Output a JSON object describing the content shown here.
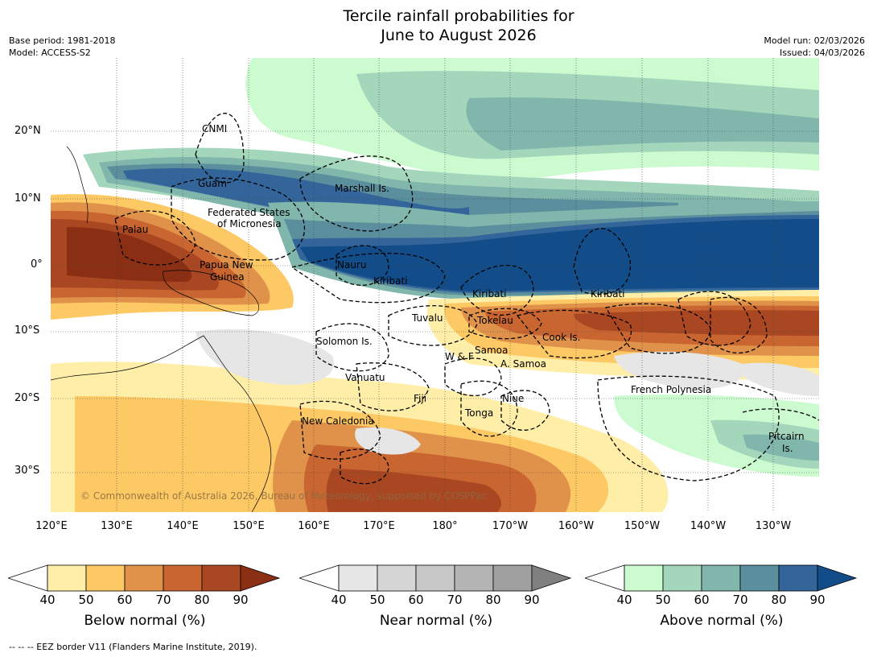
{
  "title": {
    "line1": "Tercile rainfall probabilities for",
    "line2": "June to August 2026"
  },
  "meta_left": {
    "base_period": "Base period: 1981-2018",
    "model": "Model: ACCESS-S2"
  },
  "meta_right": {
    "model_run": "Model run: 02/03/2026",
    "issued": "Issued: 04/03/2026"
  },
  "lat_labels": [
    "20°N",
    "10°N",
    "0°",
    "10°S",
    "20°S",
    "30°S"
  ],
  "lon_labels": [
    "120°E",
    "130°E",
    "140°E",
    "150°E",
    "160°E",
    "170°E",
    "180°",
    "170°W",
    "160°W",
    "150°W",
    "140°W",
    "130°W"
  ],
  "copyright": "© Commonwealth of Australia 2026, Bureau of Meteorology, supported by COSPPac",
  "places": [
    "CNMI",
    "Guam",
    "Marshall Is.",
    "Federated States",
    "of Micronesia",
    "Palau",
    "Papua New",
    "Guinea",
    "Nauru",
    "Kiribati",
    "Kiribati",
    "Kiribati",
    "Tuvalu",
    "Tokelau",
    "Cook Is.",
    "Solomon Is.",
    "W & F",
    "Samoa",
    "A. Samoa",
    "Vanuatu",
    "Fiji",
    "Niue",
    "French Polynesia",
    "Tonga",
    "New Caledonia",
    "Pitcairn",
    "Is."
  ],
  "colorbars": [
    {
      "title": "Below normal (%)",
      "ticks": [
        "40",
        "50",
        "60",
        "70",
        "80",
        "90"
      ],
      "colors": [
        "#ffffff",
        "#ffeea8",
        "#fdc965",
        "#e0924a",
        "#c96530",
        "#a94722",
        "#8a2f14"
      ]
    },
    {
      "title": "Near normal (%)",
      "ticks": [
        "40",
        "50",
        "60",
        "70",
        "80",
        "90"
      ],
      "colors": [
        "#ffffff",
        "#e6e6e6",
        "#d6d6d6",
        "#c8c8c8",
        "#b4b4b4",
        "#a0a0a0",
        "#808080"
      ]
    },
    {
      "title": "Above normal (%)",
      "ticks": [
        "40",
        "50",
        "60",
        "70",
        "80",
        "90"
      ],
      "colors": [
        "#ffffff",
        "#ccfbd0",
        "#a3d6bb",
        "#80b6ab",
        "#5b8f9e",
        "#33659a",
        "#124d8a"
      ]
    }
  ],
  "footer": "--  --  -- EEZ border V11 (Flanders Marine Institute, 2019)."
}
